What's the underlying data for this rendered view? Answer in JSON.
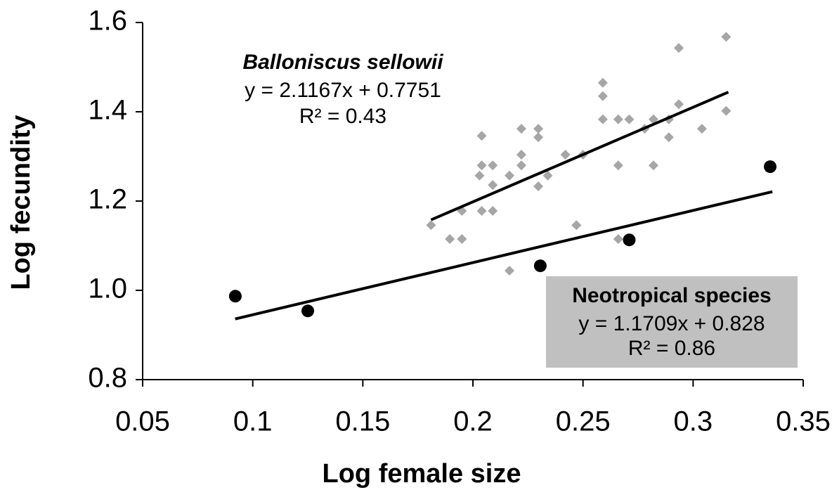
{
  "chart_data": {
    "type": "scatter",
    "xlabel": "Log  female size",
    "ylabel": "Log fecundity",
    "xlim": [
      0.05,
      0.35
    ],
    "ylim": [
      0.8,
      1.6
    ],
    "xticks": [
      0.05,
      0.1,
      0.15,
      0.2,
      0.25,
      0.3,
      0.35
    ],
    "yticks": [
      0.8,
      {
        "value": 1.0,
        "label": "1.0"
      },
      1.2,
      1.4,
      1.6
    ],
    "grid": false,
    "series": [
      {
        "name": "Balloniscus sellowii",
        "color": "#a6a6a6",
        "marker": "diamond",
        "equation": "y = 2.1167x + 0.7751",
        "r2": "R² = 0.43",
        "x": [
          0.181,
          0.1895,
          0.195,
          0.195,
          0.203,
          0.204,
          0.204,
          0.204,
          0.209,
          0.209,
          0.209,
          0.2166,
          0.2166,
          0.222,
          0.222,
          0.222,
          0.2297,
          0.2297,
          0.2297,
          0.234,
          0.242,
          0.247,
          0.25,
          0.259,
          0.259,
          0.259,
          0.266,
          0.266,
          0.266,
          0.271,
          0.278,
          0.282,
          0.282,
          0.289,
          0.289,
          0.2935,
          0.2935,
          0.304,
          0.315,
          0.315
        ],
        "values": [
          1.146,
          1.115,
          1.115,
          1.178,
          1.257,
          1.178,
          1.28,
          1.346,
          1.178,
          1.28,
          1.236,
          1.044,
          1.257,
          1.362,
          1.304,
          1.28,
          1.362,
          1.343,
          1.233,
          1.257,
          1.304,
          1.146,
          1.304,
          1.465,
          1.435,
          1.383,
          1.383,
          1.28,
          1.115,
          1.383,
          1.362,
          1.28,
          1.383,
          1.343,
          1.383,
          1.543,
          1.417,
          1.362,
          1.568,
          1.402
        ],
        "trend": {
          "x": [
            0.181,
            0.316
          ],
          "values": [
            1.158,
            1.444
          ]
        }
      },
      {
        "name": "Neotropical species",
        "color": "#000000",
        "marker": "circle",
        "equation": "y = 1.1709x + 0.828",
        "r2": "R² = 0.86",
        "x": [
          0.0921,
          0.125,
          0.2306,
          0.271,
          0.335
        ],
        "values": [
          0.987,
          0.954,
          1.055,
          1.113,
          1.277
        ],
        "trend": {
          "x": [
            0.092,
            0.336
          ],
          "values": [
            0.936,
            1.221
          ]
        }
      }
    ]
  }
}
